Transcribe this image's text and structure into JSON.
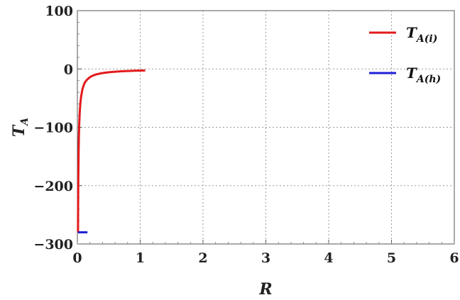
{
  "chart_data": {
    "type": "line",
    "title": "",
    "xlabel": "R",
    "ylabel": {
      "main": "T",
      "sub": "A"
    },
    "xlim": [
      0,
      6
    ],
    "ylim": [
      -300,
      100
    ],
    "xticks": [
      0,
      1,
      2,
      3,
      4,
      5,
      6
    ],
    "yticks": [
      100,
      0,
      -100,
      -200,
      -300
    ],
    "xtick_labels": [
      "0",
      "1",
      "2",
      "3",
      "4",
      "5",
      "6"
    ],
    "ytick_labels": [
      "100",
      "0",
      "−100",
      "−200",
      "−300"
    ],
    "grid": true,
    "legend_position": "top-right",
    "series": [
      {
        "name": {
          "main": "T",
          "sub": "A(i)"
        },
        "color": "#e31a1c",
        "x": [
          0.01,
          0.012,
          0.015,
          0.02,
          0.025,
          0.03,
          0.04,
          0.05,
          0.06,
          0.08,
          0.1,
          0.12,
          0.15,
          0.2,
          0.25,
          0.3,
          0.4,
          0.5,
          0.6,
          0.7,
          0.8,
          0.9,
          1.0,
          1.08
        ],
        "y": [
          -280,
          -233,
          -187,
          -140,
          -112,
          -93,
          -70,
          -56,
          -47,
          -35,
          -28,
          -23,
          -18.7,
          -14,
          -11.2,
          -9.3,
          -7,
          -5.6,
          -4.7,
          -4,
          -3.5,
          -3.1,
          -2.8,
          -2.6
        ]
      },
      {
        "name": {
          "main": "T",
          "sub": "A(h)"
        },
        "color": "#1f1fd6",
        "x": [
          0.01,
          0.16
        ],
        "y": [
          -280,
          -280
        ]
      }
    ]
  }
}
